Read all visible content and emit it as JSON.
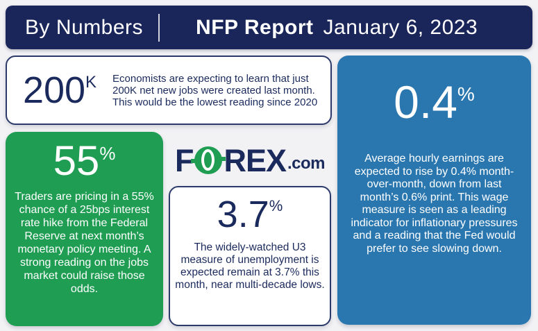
{
  "header": {
    "brand": "By Numbers",
    "title": "NFP Report",
    "date": "January 6, 2023"
  },
  "logo": {
    "name": "FOREX.com",
    "part_f": "F",
    "part_rex": "REX",
    "part_com": ".com"
  },
  "cards": {
    "jobs": {
      "value": "200",
      "unit": "K",
      "text": "Economists are expecting to learn that just 200K net new jobs were created last month. This would be the lowest reading since 2020"
    },
    "rate_hike": {
      "value": "55",
      "unit": "%",
      "text": "Traders are pricing in a 55% chance of a 25bps interest rate hike from the Federal Reserve at next month’s monetary policy meeting. A strong reading on the jobs market could raise those odds."
    },
    "unemployment": {
      "value": "3.7",
      "unit": "%",
      "text": "The widely-watched U3 measure of unemployment is expected remain at 3.7% this month, near multi-decade lows."
    },
    "earnings": {
      "value": "0.4",
      "unit": "%",
      "text": "Average hourly earnings are expected to rise by 0.4% month-over-month, down from last month’s 0.6% print. This wage measure is seen as a leading indicator for inflationary pressures and a reading that the Fed would prefer to see slowing down."
    }
  },
  "colors": {
    "navy": "#1a265a",
    "navy_text": "#1b2a5c",
    "green": "#1f9e53",
    "blue": "#2a77b0",
    "background": "#f2f2f4",
    "card_border": "#2c3a6b",
    "white": "#ffffff"
  }
}
